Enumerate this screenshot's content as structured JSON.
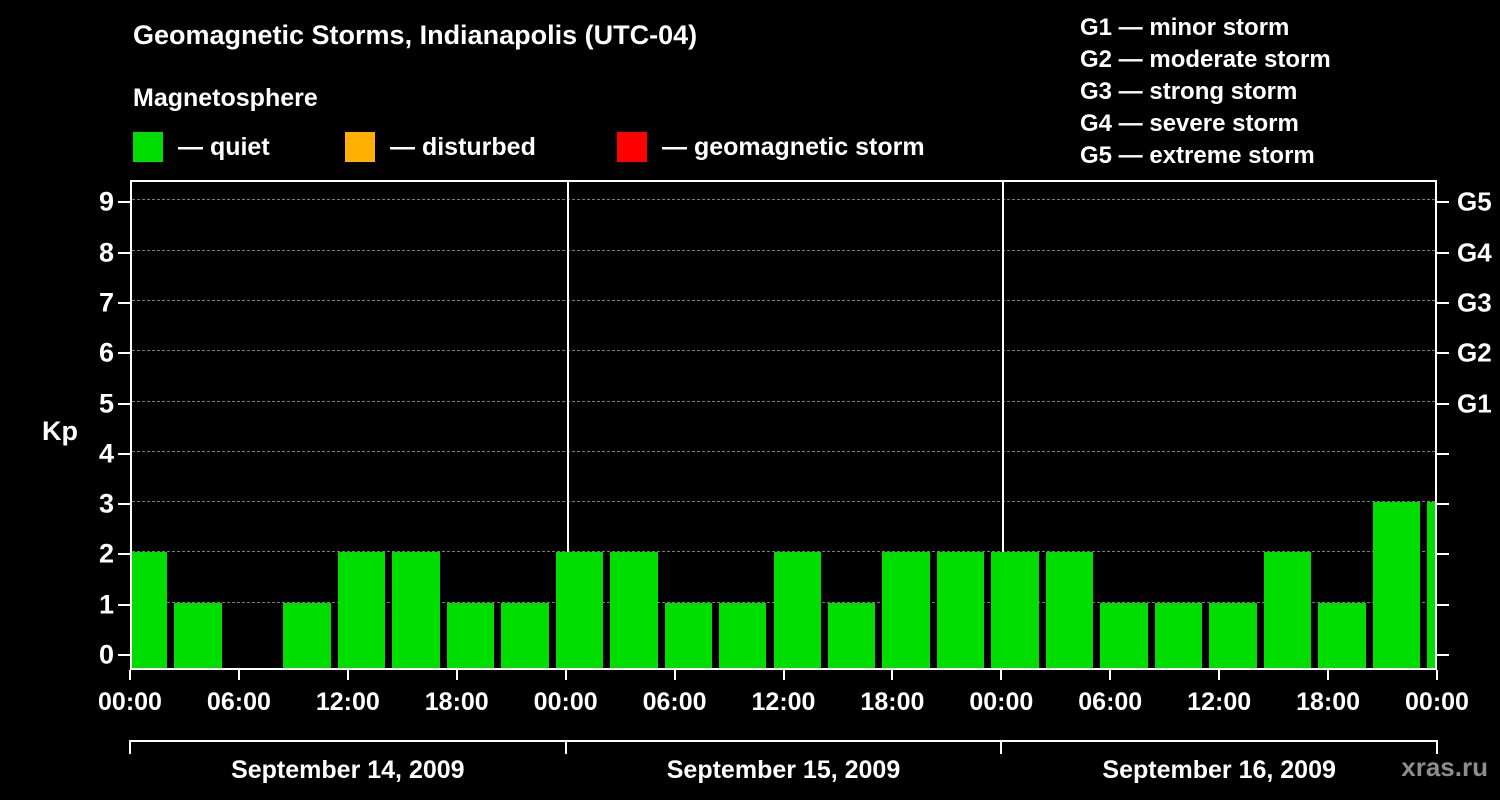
{
  "watermark": "xras.ru",
  "chart_data": {
    "type": "bar",
    "title": "Geomagnetic Storms, Indianapolis (UTC-04)",
    "subtitle": "Magnetosphere",
    "ylabel": "Kp",
    "ylim": [
      -0.3,
      9.4
    ],
    "yticks": [
      0,
      1,
      2,
      3,
      4,
      5,
      6,
      7,
      8,
      9
    ],
    "grid": "dashed horizontal gray lines at each Kp integer",
    "bar_color": "#00dd00",
    "legend": {
      "items": [
        {
          "name": "quiet",
          "label": "— quiet",
          "color": "#00dd00"
        },
        {
          "name": "disturbed",
          "label": "— disturbed",
          "color": "#ffb000"
        },
        {
          "name": "storm",
          "label": "— geomagnetic storm",
          "color": "#ff0000"
        }
      ]
    },
    "g_scale_legend": [
      "G1 — minor storm",
      "G2 — moderate storm",
      "G3 — strong storm",
      "G4 — severe storm",
      "G5 — extreme storm"
    ],
    "right_axis_labels": [
      {
        "kp": 5,
        "label": "G1"
      },
      {
        "kp": 6,
        "label": "G2"
      },
      {
        "kp": 7,
        "label": "G3"
      },
      {
        "kp": 8,
        "label": "G4"
      },
      {
        "kp": 9,
        "label": "G5"
      }
    ],
    "x_tick_labels": [
      "00:00",
      "06:00",
      "12:00",
      "18:00",
      "00:00",
      "06:00",
      "12:00",
      "18:00",
      "00:00",
      "06:00",
      "12:00",
      "18:00",
      "00:00"
    ],
    "interval_hours": 3,
    "days": [
      {
        "date": "September 14, 2009",
        "kp": [
          2,
          1,
          0,
          1,
          2,
          2,
          1,
          1
        ]
      },
      {
        "date": "September 15, 2009",
        "kp": [
          2,
          2,
          1,
          1,
          2,
          1,
          2,
          2
        ]
      },
      {
        "date": "September 16, 2009",
        "kp": [
          2,
          2,
          1,
          1,
          1,
          2,
          1,
          3
        ]
      }
    ],
    "partial_next_bar_kp": 3
  }
}
